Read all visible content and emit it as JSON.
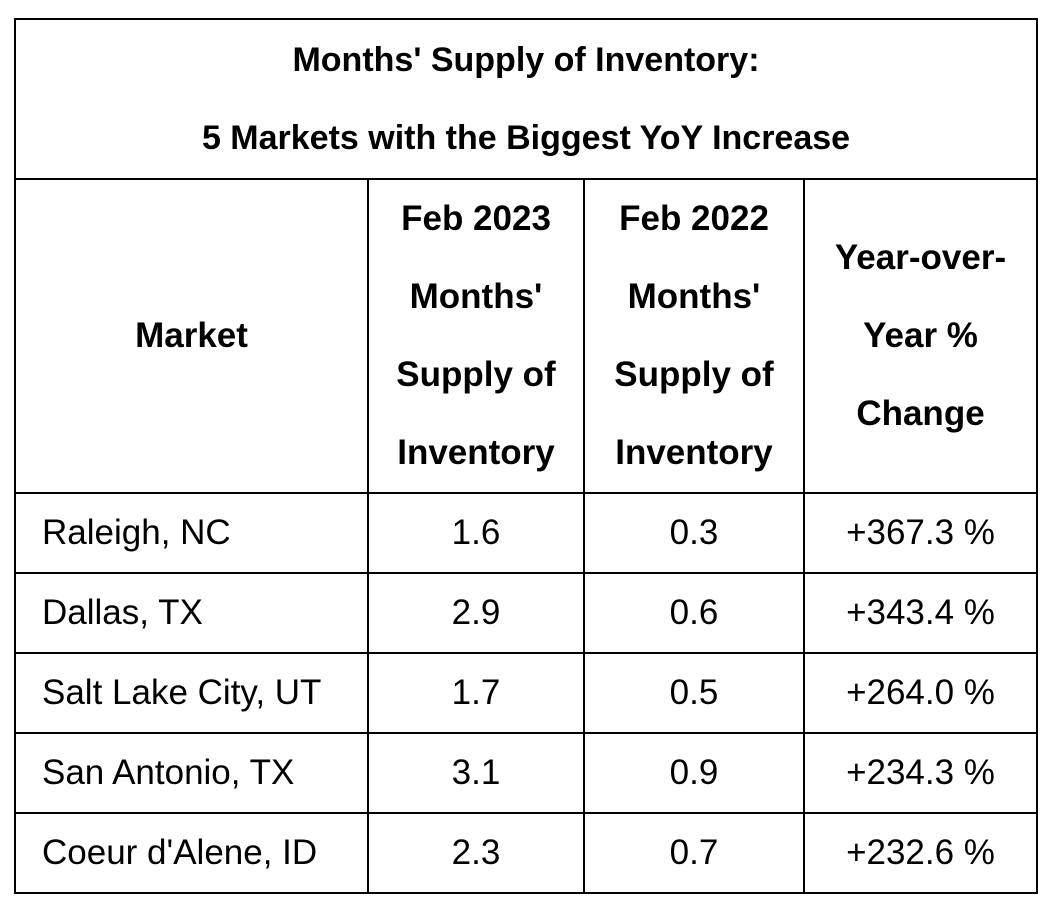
{
  "table": {
    "title": "Months' Supply of Inventory:",
    "subtitle": "5 Markets with the Biggest YoY Increase",
    "header": [
      "Market",
      "Feb 2023 Months' Supply of Inventory",
      "Feb 2022 Months' Supply of Inventory",
      "Year-over-Year % Change"
    ],
    "rows": [
      [
        "Raleigh, NC",
        "1.6",
        "0.3",
        "+367.3 %"
      ],
      [
        "Dallas, TX",
        "2.9",
        "0.6",
        "+343.4 %"
      ],
      [
        "Salt Lake City, UT",
        "1.7",
        "0.5",
        "+264.0 %"
      ],
      [
        "San Antonio, TX",
        "3.1",
        "0.9",
        "+234.3 %"
      ],
      [
        "Coeur d'Alene, ID",
        "2.3",
        "0.7",
        "+232.6 %"
      ]
    ]
  }
}
